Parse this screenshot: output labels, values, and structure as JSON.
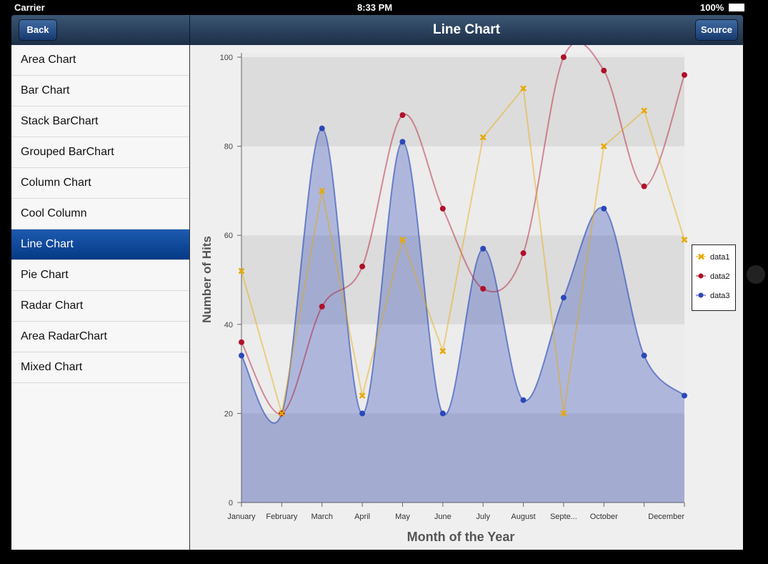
{
  "status_bar": {
    "carrier": "Carrier",
    "time": "8:33 PM",
    "battery": "100%"
  },
  "nav_bar": {
    "back": "Back",
    "title": "Line Chart",
    "source": "Source"
  },
  "sidebar": {
    "items": [
      "Area Chart",
      "Bar Chart",
      "Stack BarChart",
      "Grouped BarChart",
      "Column Chart",
      "Cool Column",
      "Line Chart",
      "Pie Chart",
      "Radar Chart",
      "Area RadarChart",
      "Mixed Chart"
    ],
    "selected": 6
  },
  "chart_data": {
    "type": "line",
    "xlabel": "Month of the Year",
    "ylabel": "Number of Hits",
    "categories": [
      "January",
      "February",
      "March",
      "April",
      "May",
      "June",
      "July",
      "August",
      "Septe...",
      "October",
      null,
      "December"
    ],
    "series": [
      {
        "name": "data1",
        "color": "#e8a800",
        "marker": "cross",
        "smooth": false,
        "area": false,
        "values": [
          52,
          20,
          70,
          24,
          59,
          34,
          82,
          93,
          20,
          80,
          88,
          59
        ]
      },
      {
        "name": "data2",
        "color": "#b0102a",
        "marker": "circle",
        "smooth": true,
        "area": false,
        "values": [
          36,
          20,
          44,
          53,
          87,
          66,
          48,
          56,
          100,
          97,
          71,
          96
        ]
      },
      {
        "name": "data3",
        "color": "#2a48b8",
        "marker": "circle",
        "smooth": true,
        "area": true,
        "values": [
          33,
          20,
          84,
          20,
          81,
          20,
          57,
          23,
          46,
          66,
          33,
          24
        ]
      }
    ],
    "ylim": [
      0,
      100
    ],
    "yticks": [
      0,
      20,
      40,
      60,
      80,
      100
    ],
    "bands": true,
    "legend": "right"
  }
}
